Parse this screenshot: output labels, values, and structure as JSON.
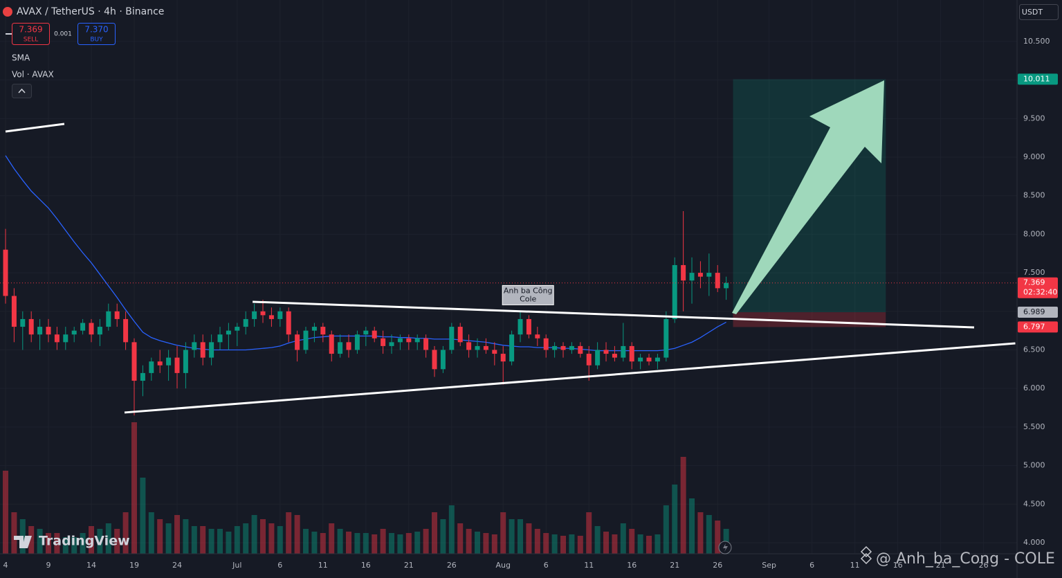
{
  "chart_data": {
    "type": "candlestick",
    "title": "AVAX / TetherUS · 4h · Binance",
    "sell": {
      "price": "7.369",
      "label": "SELL"
    },
    "spread": "0.001",
    "buy": {
      "price": "7.370",
      "label": "BUY"
    },
    "indicators": [
      "SMA",
      "Vol · AVAX"
    ],
    "currency": "USDT",
    "logo": "TradingView",
    "watermark": "@ Anh_ba_Cong - COLE",
    "x": [
      0,
      1,
      2,
      3,
      4,
      5,
      6,
      7,
      8,
      9,
      10,
      11,
      12,
      13,
      14,
      15,
      16,
      17,
      18,
      19,
      20,
      21,
      22,
      23,
      24,
      25,
      26,
      27,
      28,
      29,
      30,
      31,
      32,
      33,
      34,
      35,
      36,
      37,
      38,
      39,
      40,
      41,
      42,
      43,
      44,
      45,
      46,
      47,
      48,
      49,
      50,
      51,
      52,
      53,
      54,
      55,
      56,
      57,
      58,
      59,
      60,
      61,
      62,
      63,
      64,
      65,
      66,
      67,
      68,
      69,
      70,
      71,
      72,
      73,
      74,
      75,
      76,
      77,
      78,
      79,
      80,
      81,
      82,
      83,
      84
    ],
    "open": [
      7.8,
      7.2,
      6.8,
      6.9,
      6.7,
      6.8,
      6.7,
      6.6,
      6.7,
      6.75,
      6.85,
      6.7,
      6.8,
      7.0,
      6.9,
      6.6,
      6.1,
      6.2,
      6.35,
      6.3,
      6.4,
      6.2,
      6.5,
      6.6,
      6.4,
      6.6,
      6.7,
      6.75,
      6.8,
      6.9,
      7.0,
      6.95,
      6.9,
      7.0,
      6.7,
      6.5,
      6.75,
      6.8,
      6.7,
      6.45,
      6.6,
      6.5,
      6.7,
      6.75,
      6.65,
      6.55,
      6.6,
      6.65,
      6.6,
      6.65,
      6.5,
      6.25,
      6.5,
      6.8,
      6.6,
      6.5,
      6.55,
      6.5,
      6.45,
      6.35,
      6.7,
      6.9,
      6.7,
      6.65,
      6.5,
      6.55,
      6.5,
      6.55,
      6.45,
      6.3,
      6.5,
      6.45,
      6.4,
      6.55,
      6.35,
      6.4,
      6.35,
      6.4,
      6.9,
      7.6,
      7.4,
      7.5,
      7.45,
      7.5,
      7.3
    ],
    "high": [
      8.07,
      7.3,
      7.0,
      7.0,
      6.9,
      6.9,
      6.8,
      6.8,
      6.8,
      6.9,
      6.9,
      6.9,
      7.1,
      7.1,
      7.0,
      6.65,
      6.3,
      6.4,
      6.5,
      6.5,
      6.55,
      6.6,
      6.7,
      6.7,
      6.7,
      6.8,
      6.85,
      6.85,
      7.0,
      7.1,
      7.15,
      7.05,
      7.05,
      7.05,
      6.75,
      6.8,
      6.85,
      6.85,
      6.75,
      6.7,
      6.7,
      6.75,
      6.8,
      6.8,
      6.75,
      6.7,
      6.7,
      6.7,
      6.7,
      6.7,
      6.55,
      6.55,
      6.85,
      6.85,
      6.7,
      6.65,
      6.65,
      6.6,
      6.55,
      6.75,
      7.0,
      6.95,
      6.8,
      6.7,
      6.6,
      6.6,
      6.6,
      6.6,
      6.55,
      6.6,
      6.6,
      6.55,
      6.85,
      6.6,
      6.45,
      6.45,
      6.45,
      7.0,
      7.7,
      8.3,
      7.7,
      7.65,
      7.75,
      7.6,
      7.45
    ],
    "low": [
      7.1,
      6.6,
      6.5,
      6.6,
      6.5,
      6.6,
      6.5,
      6.5,
      6.6,
      6.7,
      6.6,
      6.55,
      6.75,
      6.8,
      6.5,
      5.65,
      5.9,
      6.1,
      6.2,
      6.1,
      6.0,
      6.0,
      6.4,
      6.3,
      6.3,
      6.5,
      6.5,
      6.55,
      6.7,
      6.8,
      6.85,
      6.8,
      6.8,
      6.6,
      6.35,
      6.45,
      6.6,
      6.6,
      6.35,
      6.4,
      6.4,
      6.45,
      6.55,
      6.6,
      6.45,
      6.45,
      6.5,
      6.5,
      6.5,
      6.4,
      6.15,
      6.2,
      6.45,
      6.55,
      6.4,
      6.4,
      6.45,
      6.3,
      6.05,
      6.3,
      6.6,
      6.65,
      6.55,
      6.4,
      6.4,
      6.4,
      6.45,
      6.4,
      6.1,
      6.25,
      6.35,
      6.35,
      6.35,
      6.25,
      6.25,
      6.3,
      6.25,
      6.35,
      6.85,
      7.0,
      7.1,
      7.3,
      7.2,
      7.25,
      7.15
    ],
    "close": [
      7.2,
      6.8,
      6.9,
      6.7,
      6.8,
      6.7,
      6.6,
      6.7,
      6.75,
      6.85,
      6.7,
      6.8,
      7.0,
      6.9,
      6.6,
      6.1,
      6.2,
      6.35,
      6.3,
      6.4,
      6.2,
      6.5,
      6.6,
      6.4,
      6.6,
      6.7,
      6.75,
      6.8,
      6.9,
      7.0,
      6.95,
      6.9,
      7.0,
      6.7,
      6.5,
      6.75,
      6.8,
      6.7,
      6.45,
      6.6,
      6.5,
      6.7,
      6.75,
      6.65,
      6.55,
      6.6,
      6.65,
      6.6,
      6.65,
      6.5,
      6.25,
      6.5,
      6.8,
      6.6,
      6.5,
      6.55,
      6.5,
      6.45,
      6.35,
      6.7,
      6.9,
      6.7,
      6.65,
      6.5,
      6.55,
      6.5,
      6.55,
      6.45,
      6.3,
      6.5,
      6.45,
      6.4,
      6.55,
      6.35,
      6.4,
      6.35,
      6.4,
      6.9,
      7.6,
      7.4,
      7.5,
      7.45,
      7.5,
      7.3,
      7.369
    ],
    "up_color": "#089981",
    "down_color": "#f23645",
    "volume": [
      60,
      30,
      25,
      20,
      18,
      15,
      15,
      12,
      12,
      15,
      20,
      18,
      22,
      18,
      30,
      95,
      55,
      30,
      25,
      22,
      28,
      25,
      20,
      20,
      18,
      18,
      16,
      20,
      22,
      28,
      25,
      22,
      20,
      30,
      28,
      18,
      16,
      15,
      22,
      18,
      16,
      15,
      15,
      14,
      18,
      15,
      14,
      15,
      16,
      18,
      30,
      25,
      35,
      22,
      18,
      16,
      15,
      14,
      30,
      25,
      25,
      22,
      18,
      15,
      14,
      13,
      14,
      13,
      30,
      20,
      16,
      14,
      22,
      18,
      14,
      13,
      14,
      35,
      50,
      70,
      40,
      30,
      28,
      24,
      18
    ],
    "vlim": [
      0,
      100
    ],
    "sma": {
      "name": "SMA",
      "color": "#2962ff",
      "values": [
        9.02,
        8.85,
        8.7,
        8.56,
        8.45,
        8.34,
        8.2,
        8.05,
        7.9,
        7.76,
        7.63,
        7.48,
        7.33,
        7.18,
        7.02,
        6.87,
        6.73,
        6.66,
        6.62,
        6.59,
        6.56,
        6.54,
        6.52,
        6.51,
        6.5,
        6.5,
        6.5,
        6.5,
        6.5,
        6.51,
        6.52,
        6.53,
        6.55,
        6.59,
        6.62,
        6.64,
        6.66,
        6.67,
        6.68,
        6.68,
        6.68,
        6.68,
        6.68,
        6.68,
        6.67,
        6.67,
        6.66,
        6.66,
        6.65,
        6.65,
        6.64,
        6.64,
        6.64,
        6.63,
        6.62,
        6.61,
        6.6,
        6.58,
        6.56,
        6.55,
        6.54,
        6.54,
        6.53,
        6.53,
        6.53,
        6.52,
        6.52,
        6.51,
        6.5,
        6.49,
        6.49,
        6.49,
        6.49,
        6.49,
        6.49,
        6.49,
        6.49,
        6.5,
        6.52,
        6.56,
        6.6,
        6.66,
        6.73,
        6.8,
        6.86
      ]
    },
    "xlim": [
      -0.645,
      117.9
    ],
    "ylim": [
      3.856,
      11.038
    ],
    "xticks": [
      {
        "value": 0,
        "label": "4"
      },
      {
        "value": 5,
        "label": "9"
      },
      {
        "value": 10,
        "label": "14"
      },
      {
        "value": 15,
        "label": "19"
      },
      {
        "value": 20,
        "label": "24"
      },
      {
        "value": 27,
        "label": "Jul"
      },
      {
        "value": 32,
        "label": "6"
      },
      {
        "value": 37,
        "label": "11"
      },
      {
        "value": 42,
        "label": "16"
      },
      {
        "value": 47,
        "label": "21"
      },
      {
        "value": 52,
        "label": "26"
      },
      {
        "value": 58,
        "label": "Aug"
      },
      {
        "value": 63,
        "label": "6"
      },
      {
        "value": 68,
        "label": "11"
      },
      {
        "value": 73,
        "label": "16"
      },
      {
        "value": 78,
        "label": "21"
      },
      {
        "value": 83,
        "label": "26"
      },
      {
        "value": 89,
        "label": "Sep"
      },
      {
        "value": 94,
        "label": "6"
      },
      {
        "value": 99,
        "label": "11"
      },
      {
        "value": 104,
        "label": "16"
      },
      {
        "value": 109,
        "label": "21"
      },
      {
        "value": 114,
        "label": "26"
      }
    ],
    "yticks": [
      {
        "value": 4,
        "label": "4.000"
      },
      {
        "value": 4.5,
        "label": "4.500"
      },
      {
        "value": 5,
        "label": "5.000"
      },
      {
        "value": 5.5,
        "label": "5.500"
      },
      {
        "value": 6,
        "label": "6.000"
      },
      {
        "value": 6.5,
        "label": "6.500"
      },
      {
        "value": 7,
        "label": "7.000"
      },
      {
        "value": 7.5,
        "label": "7.500"
      },
      {
        "value": 8,
        "label": "8.000"
      },
      {
        "value": 8.5,
        "label": "8.500"
      },
      {
        "value": 9,
        "label": "9.000"
      },
      {
        "value": 9.5,
        "label": "9.500"
      },
      {
        "value": 10,
        "label": "10.000"
      },
      {
        "value": 10.5,
        "label": "10.500"
      }
    ],
    "grid": true,
    "last_price": {
      "value": 7.369,
      "label": "7.369",
      "timer": "02:32:40"
    },
    "position": {
      "start": 84.8,
      "end": 102.6,
      "target": {
        "value": 10.011,
        "label": "10.011"
      },
      "entry": {
        "value": 6.989,
        "label": "6.989"
      },
      "stop": {
        "value": 6.797,
        "label": "6.797"
      }
    },
    "trendlines": [
      {
        "points": [
          [
            28.8,
            7.124
          ],
          [
            112.9,
            6.792
          ]
        ]
      },
      {
        "points": [
          [
            13.87,
            5.688
          ],
          [
            117.7,
            6.585
          ]
        ]
      },
      {
        "points": [
          [
            0,
            9.332
          ],
          [
            6.85,
            9.431
          ]
        ]
      }
    ],
    "annotation": {
      "lines": [
        "Anh ba Công",
        "Cole"
      ],
      "x": 60.9,
      "y": 7.21
    }
  }
}
